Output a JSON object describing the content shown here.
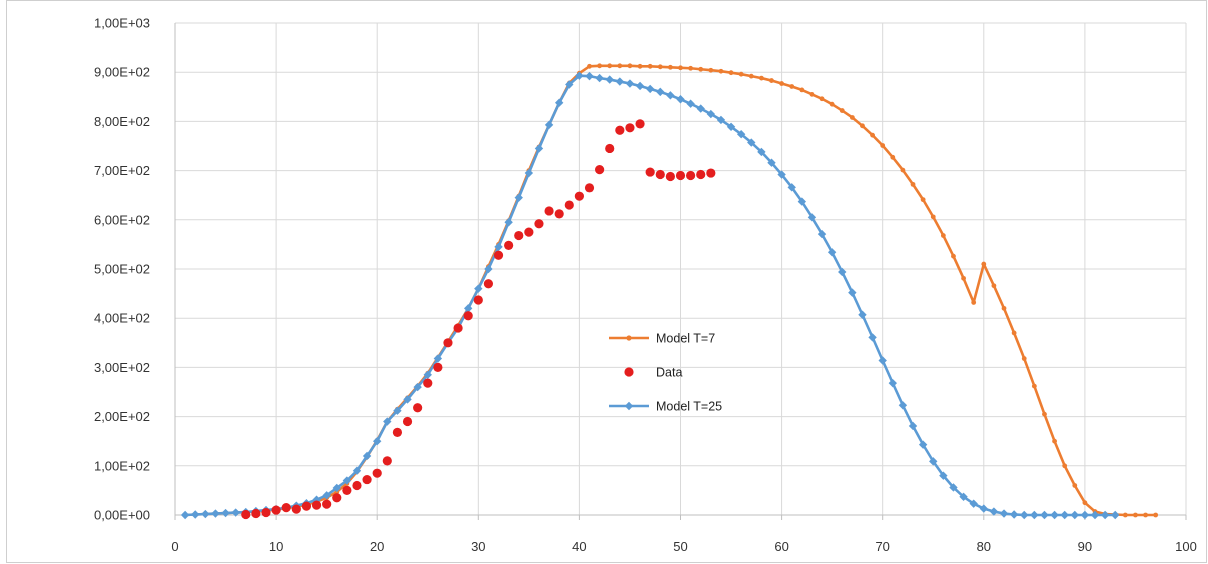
{
  "chart_data": {
    "type": "line",
    "title": "",
    "xlabel": "",
    "ylabel": "",
    "xlim": [
      0,
      100
    ],
    "ylim": [
      0,
      1000
    ],
    "grid": true,
    "legend_position": "center",
    "x_ticks": [
      0,
      10,
      20,
      30,
      40,
      50,
      60,
      70,
      80,
      90,
      100
    ],
    "x_tick_labels": [
      "0",
      "10",
      "20",
      "30",
      "40",
      "50",
      "60",
      "70",
      "80",
      "90",
      "100"
    ],
    "y_ticks": [
      0,
      100,
      200,
      300,
      400,
      500,
      600,
      700,
      800,
      900,
      1000
    ],
    "y_tick_labels": [
      "0,00E+00",
      "1,00E+02",
      "2,00E+02",
      "3,00E+02",
      "4,00E+02",
      "5,00E+02",
      "6,00E+02",
      "7,00E+02",
      "8,00E+02",
      "9,00E+02",
      "1,00E+03"
    ],
    "series": [
      {
        "name": "Model T=7",
        "kind": "line",
        "marker": "circle-small",
        "color": "#ED7D31",
        "x": [
          1,
          2,
          3,
          4,
          5,
          6,
          7,
          8,
          9,
          10,
          11,
          12,
          13,
          14,
          15,
          16,
          17,
          18,
          19,
          20,
          21,
          22,
          23,
          24,
          25,
          26,
          27,
          28,
          29,
          30,
          31,
          32,
          33,
          34,
          35,
          36,
          37,
          38,
          39,
          40,
          41,
          42,
          43,
          44,
          45,
          46,
          47,
          48,
          49,
          50,
          51,
          52,
          53,
          54,
          55,
          56,
          57,
          58,
          59,
          60,
          61,
          62,
          63,
          64,
          65,
          66,
          67,
          68,
          69,
          70,
          71,
          72,
          73,
          74,
          75,
          76,
          77,
          78,
          79,
          80,
          81,
          82,
          83,
          84,
          85,
          86,
          87,
          88,
          89,
          90,
          91,
          92,
          93,
          94,
          95,
          96,
          97
        ],
        "y": [
          0,
          1,
          2,
          3,
          4,
          5,
          6,
          7,
          9,
          11,
          14,
          17,
          21,
          27,
          35,
          47,
          64,
          88,
          118,
          152,
          190,
          215,
          238,
          262,
          288,
          320,
          352,
          385,
          420,
          460,
          505,
          550,
          598,
          648,
          700,
          748,
          793,
          838,
          878,
          898,
          912,
          913,
          913,
          913,
          913,
          912,
          912,
          911,
          910,
          909,
          908,
          906,
          904,
          902,
          899,
          896,
          892,
          888,
          883,
          877,
          871,
          864,
          855,
          846,
          835,
          822,
          808,
          791,
          772,
          751,
          727,
          701,
          672,
          641,
          606,
          568,
          526,
          481,
          432,
          510,
          466,
          420,
          370,
          318,
          262,
          205,
          150,
          100,
          60,
          25,
          7,
          2,
          1,
          0,
          0,
          0,
          0
        ]
      },
      {
        "name": "Data",
        "kind": "scatter",
        "marker": "circle",
        "color": "#E41E1E",
        "x": [
          7,
          8,
          9,
          10,
          11,
          12,
          13,
          14,
          15,
          16,
          17,
          18,
          19,
          20,
          21,
          22,
          23,
          24,
          25,
          26,
          27,
          28,
          29,
          30,
          31,
          32,
          33,
          34,
          35,
          36,
          37,
          38,
          39,
          40,
          41,
          42,
          43,
          44,
          45,
          46,
          47,
          48,
          49,
          50,
          51,
          52,
          53
        ],
        "y": [
          1,
          3,
          5,
          10,
          15,
          12,
          18,
          20,
          22,
          35,
          50,
          60,
          72,
          85,
          110,
          168,
          190,
          218,
          268,
          300,
          350,
          380,
          405,
          437,
          470,
          528,
          548,
          568,
          575,
          592,
          618,
          612,
          630,
          648,
          665,
          702,
          745,
          782,
          787,
          795,
          697,
          692,
          688,
          690,
          690,
          692,
          695
        ]
      },
      {
        "name": "Model T=25",
        "kind": "line",
        "marker": "diamond",
        "color": "#5B9BD5",
        "x": [
          1,
          2,
          3,
          4,
          5,
          6,
          7,
          8,
          9,
          10,
          11,
          12,
          13,
          14,
          15,
          16,
          17,
          18,
          19,
          20,
          21,
          22,
          23,
          24,
          25,
          26,
          27,
          28,
          29,
          30,
          31,
          32,
          33,
          34,
          35,
          36,
          37,
          38,
          39,
          40,
          41,
          42,
          43,
          44,
          45,
          46,
          47,
          48,
          49,
          50,
          51,
          52,
          53,
          54,
          55,
          56,
          57,
          58,
          59,
          60,
          61,
          62,
          63,
          64,
          65,
          66,
          67,
          68,
          69,
          70,
          71,
          72,
          73,
          74,
          75,
          76,
          77,
          78,
          79,
          80,
          81,
          82,
          83,
          84,
          85,
          86,
          87,
          88,
          89,
          90,
          91,
          92,
          93
        ],
        "y": [
          0,
          1,
          2,
          3,
          4,
          5,
          6,
          8,
          10,
          12,
          15,
          19,
          24,
          31,
          40,
          55,
          70,
          90,
          120,
          150,
          190,
          212,
          235,
          260,
          285,
          318,
          350,
          380,
          420,
          460,
          500,
          545,
          595,
          645,
          695,
          745,
          793,
          838,
          875,
          893,
          892,
          888,
          885,
          881,
          877,
          872,
          866,
          860,
          853,
          845,
          836,
          826,
          815,
          803,
          789,
          774,
          757,
          738,
          716,
          692,
          666,
          637,
          605,
          571,
          534,
          494,
          452,
          407,
          361,
          314,
          268,
          223,
          181,
          143,
          109,
          80,
          56,
          37,
          23,
          13,
          7,
          3,
          1,
          0,
          0,
          0,
          0,
          0,
          0,
          0,
          0,
          0,
          0
        ]
      }
    ]
  },
  "legend": {
    "items": [
      {
        "label": "Model T=7",
        "color": "#ED7D31"
      },
      {
        "label": "Data",
        "color": "#E41E1E"
      },
      {
        "label": "Model T=25",
        "color": "#5B9BD5"
      }
    ]
  }
}
